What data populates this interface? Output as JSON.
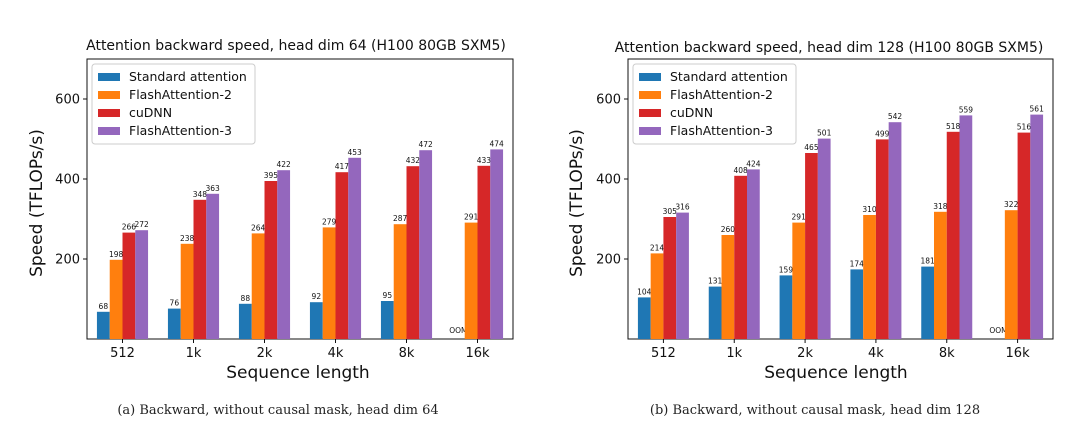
{
  "colors": {
    "Standard attention": "#1f77b4",
    "FlashAttention-2": "#ff7f0e",
    "cuDNN": "#d62728",
    "FlashAttention-3": "#9467bd"
  },
  "chart_data": [
    {
      "type": "bar",
      "title": "Attention backward speed, head dim 64 (H100 80GB SXM5)",
      "xlabel": "Sequence length",
      "ylabel": "Speed (TFLOPs/s)",
      "categories": [
        "512",
        "1k",
        "2k",
        "4k",
        "8k",
        "16k"
      ],
      "ylim": [
        0,
        700
      ],
      "yticks": [
        200,
        400,
        600
      ],
      "legend": "top-left",
      "series": [
        {
          "name": "Standard attention",
          "values": [
            68,
            76,
            88,
            92,
            95,
            null
          ],
          "labels": [
            "68",
            "76",
            "88",
            "92",
            "95",
            "OOM"
          ]
        },
        {
          "name": "FlashAttention-2",
          "values": [
            198,
            238,
            264,
            279,
            287,
            291
          ],
          "labels": [
            "198",
            "238",
            "264",
            "279",
            "287",
            "291"
          ]
        },
        {
          "name": "cuDNN",
          "values": [
            266,
            348,
            395,
            417,
            432,
            433
          ],
          "labels": [
            "266",
            "348",
            "395",
            "417",
            "432",
            "433"
          ]
        },
        {
          "name": "FlashAttention-3",
          "values": [
            272,
            363,
            422,
            453,
            472,
            474
          ],
          "labels": [
            "272",
            "363",
            "422",
            "453",
            "472",
            "474"
          ]
        }
      ],
      "caption": "(a) Backward, without causal mask, head dim 64"
    },
    {
      "type": "bar",
      "title": "Attention backward speed, head dim 128 (H100 80GB SXM5)",
      "xlabel": "Sequence length",
      "ylabel": "Speed (TFLOPs/s)",
      "categories": [
        "512",
        "1k",
        "2k",
        "4k",
        "8k",
        "16k"
      ],
      "ylim": [
        0,
        700
      ],
      "yticks": [
        200,
        400,
        600
      ],
      "legend": "top-left",
      "series": [
        {
          "name": "Standard attention",
          "values": [
            104,
            131,
            159,
            174,
            181,
            null
          ],
          "labels": [
            "104",
            "131",
            "159",
            "174",
            "181",
            "OOM"
          ]
        },
        {
          "name": "FlashAttention-2",
          "values": [
            214,
            260,
            291,
            310,
            318,
            322
          ],
          "labels": [
            "214",
            "260",
            "291",
            "310",
            "318",
            "322"
          ]
        },
        {
          "name": "cuDNN",
          "values": [
            305,
            408,
            465,
            499,
            518,
            516
          ],
          "labels": [
            "305",
            "408",
            "465",
            "499",
            "518",
            "516"
          ]
        },
        {
          "name": "FlashAttention-3",
          "values": [
            316,
            424,
            501,
            542,
            559,
            561
          ],
          "labels": [
            "316",
            "424",
            "501",
            "542",
            "559",
            "561"
          ]
        }
      ],
      "caption": "(b) Backward, without causal mask, head dim 128"
    }
  ]
}
